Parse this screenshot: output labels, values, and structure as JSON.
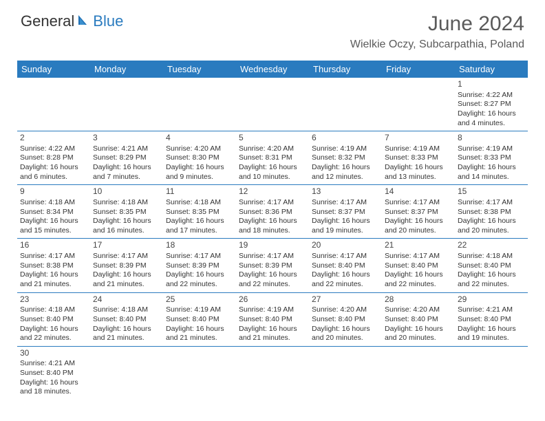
{
  "brand": {
    "part1": "General",
    "part2": "Blue"
  },
  "title": "June 2024",
  "location": "Wielkie Oczy, Subcarpathia, Poland",
  "colors": {
    "header_bg": "#2a7bbf",
    "text": "#333333",
    "title": "#5a5a5a"
  },
  "weekdays": [
    "Sunday",
    "Monday",
    "Tuesday",
    "Wednesday",
    "Thursday",
    "Friday",
    "Saturday"
  ],
  "weeks": [
    [
      {
        "n": "",
        "t": ""
      },
      {
        "n": "",
        "t": ""
      },
      {
        "n": "",
        "t": ""
      },
      {
        "n": "",
        "t": ""
      },
      {
        "n": "",
        "t": ""
      },
      {
        "n": "",
        "t": ""
      },
      {
        "n": "1",
        "t": "Sunrise: 4:22 AM\nSunset: 8:27 PM\nDaylight: 16 hours and 4 minutes."
      }
    ],
    [
      {
        "n": "2",
        "t": "Sunrise: 4:22 AM\nSunset: 8:28 PM\nDaylight: 16 hours and 6 minutes."
      },
      {
        "n": "3",
        "t": "Sunrise: 4:21 AM\nSunset: 8:29 PM\nDaylight: 16 hours and 7 minutes."
      },
      {
        "n": "4",
        "t": "Sunrise: 4:20 AM\nSunset: 8:30 PM\nDaylight: 16 hours and 9 minutes."
      },
      {
        "n": "5",
        "t": "Sunrise: 4:20 AM\nSunset: 8:31 PM\nDaylight: 16 hours and 10 minutes."
      },
      {
        "n": "6",
        "t": "Sunrise: 4:19 AM\nSunset: 8:32 PM\nDaylight: 16 hours and 12 minutes."
      },
      {
        "n": "7",
        "t": "Sunrise: 4:19 AM\nSunset: 8:33 PM\nDaylight: 16 hours and 13 minutes."
      },
      {
        "n": "8",
        "t": "Sunrise: 4:19 AM\nSunset: 8:33 PM\nDaylight: 16 hours and 14 minutes."
      }
    ],
    [
      {
        "n": "9",
        "t": "Sunrise: 4:18 AM\nSunset: 8:34 PM\nDaylight: 16 hours and 15 minutes."
      },
      {
        "n": "10",
        "t": "Sunrise: 4:18 AM\nSunset: 8:35 PM\nDaylight: 16 hours and 16 minutes."
      },
      {
        "n": "11",
        "t": "Sunrise: 4:18 AM\nSunset: 8:35 PM\nDaylight: 16 hours and 17 minutes."
      },
      {
        "n": "12",
        "t": "Sunrise: 4:17 AM\nSunset: 8:36 PM\nDaylight: 16 hours and 18 minutes."
      },
      {
        "n": "13",
        "t": "Sunrise: 4:17 AM\nSunset: 8:37 PM\nDaylight: 16 hours and 19 minutes."
      },
      {
        "n": "14",
        "t": "Sunrise: 4:17 AM\nSunset: 8:37 PM\nDaylight: 16 hours and 20 minutes."
      },
      {
        "n": "15",
        "t": "Sunrise: 4:17 AM\nSunset: 8:38 PM\nDaylight: 16 hours and 20 minutes."
      }
    ],
    [
      {
        "n": "16",
        "t": "Sunrise: 4:17 AM\nSunset: 8:38 PM\nDaylight: 16 hours and 21 minutes."
      },
      {
        "n": "17",
        "t": "Sunrise: 4:17 AM\nSunset: 8:39 PM\nDaylight: 16 hours and 21 minutes."
      },
      {
        "n": "18",
        "t": "Sunrise: 4:17 AM\nSunset: 8:39 PM\nDaylight: 16 hours and 22 minutes."
      },
      {
        "n": "19",
        "t": "Sunrise: 4:17 AM\nSunset: 8:39 PM\nDaylight: 16 hours and 22 minutes."
      },
      {
        "n": "20",
        "t": "Sunrise: 4:17 AM\nSunset: 8:40 PM\nDaylight: 16 hours and 22 minutes."
      },
      {
        "n": "21",
        "t": "Sunrise: 4:17 AM\nSunset: 8:40 PM\nDaylight: 16 hours and 22 minutes."
      },
      {
        "n": "22",
        "t": "Sunrise: 4:18 AM\nSunset: 8:40 PM\nDaylight: 16 hours and 22 minutes."
      }
    ],
    [
      {
        "n": "23",
        "t": "Sunrise: 4:18 AM\nSunset: 8:40 PM\nDaylight: 16 hours and 22 minutes."
      },
      {
        "n": "24",
        "t": "Sunrise: 4:18 AM\nSunset: 8:40 PM\nDaylight: 16 hours and 21 minutes."
      },
      {
        "n": "25",
        "t": "Sunrise: 4:19 AM\nSunset: 8:40 PM\nDaylight: 16 hours and 21 minutes."
      },
      {
        "n": "26",
        "t": "Sunrise: 4:19 AM\nSunset: 8:40 PM\nDaylight: 16 hours and 21 minutes."
      },
      {
        "n": "27",
        "t": "Sunrise: 4:20 AM\nSunset: 8:40 PM\nDaylight: 16 hours and 20 minutes."
      },
      {
        "n": "28",
        "t": "Sunrise: 4:20 AM\nSunset: 8:40 PM\nDaylight: 16 hours and 20 minutes."
      },
      {
        "n": "29",
        "t": "Sunrise: 4:21 AM\nSunset: 8:40 PM\nDaylight: 16 hours and 19 minutes."
      }
    ],
    [
      {
        "n": "30",
        "t": "Sunrise: 4:21 AM\nSunset: 8:40 PM\nDaylight: 16 hours and 18 minutes."
      },
      {
        "n": "",
        "t": ""
      },
      {
        "n": "",
        "t": ""
      },
      {
        "n": "",
        "t": ""
      },
      {
        "n": "",
        "t": ""
      },
      {
        "n": "",
        "t": ""
      },
      {
        "n": "",
        "t": ""
      }
    ]
  ]
}
